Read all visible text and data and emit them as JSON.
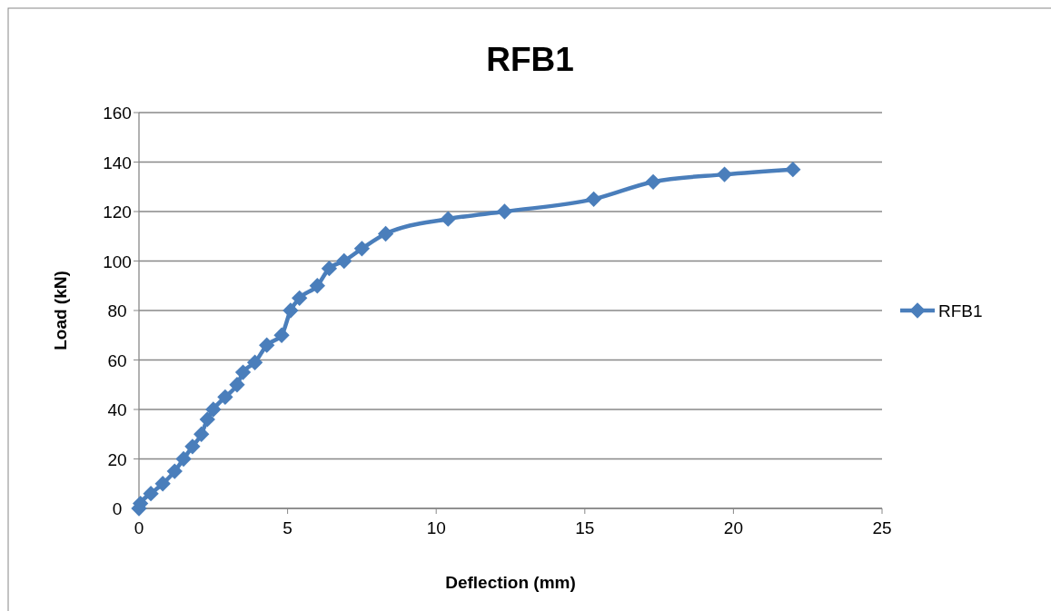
{
  "chart_data": {
    "type": "line",
    "title": "RFB1",
    "xlabel": "Deflection (mm)",
    "ylabel": "Load (kN)",
    "xlim": [
      0,
      25
    ],
    "xticks": [
      0,
      5,
      10,
      15,
      20,
      25
    ],
    "ylim": [
      0,
      160
    ],
    "yticks": [
      0,
      20,
      40,
      60,
      80,
      100,
      120,
      140,
      160
    ],
    "grid": "y",
    "legend": "right",
    "marker": "diamond",
    "line_style": "solid",
    "series": [
      {
        "name": "RFB1",
        "color": "#4a7ebb",
        "x": [
          0,
          0.05,
          0.4,
          0.8,
          1.2,
          1.5,
          1.8,
          2.1,
          2.3,
          2.5,
          2.9,
          3.3,
          3.5,
          3.9,
          4.3,
          4.8,
          5.1,
          5.4,
          6.0,
          6.4,
          6.9,
          7.5,
          8.3,
          10.4,
          12.3,
          15.3,
          17.3,
          19.7,
          22
        ],
        "values": [
          0,
          2,
          6,
          10,
          15,
          20,
          25,
          30,
          36,
          40,
          45,
          50,
          55,
          59,
          66,
          70,
          80,
          85,
          90,
          97,
          100,
          105,
          111,
          117,
          120,
          125,
          132,
          135,
          137
        ]
      }
    ]
  }
}
